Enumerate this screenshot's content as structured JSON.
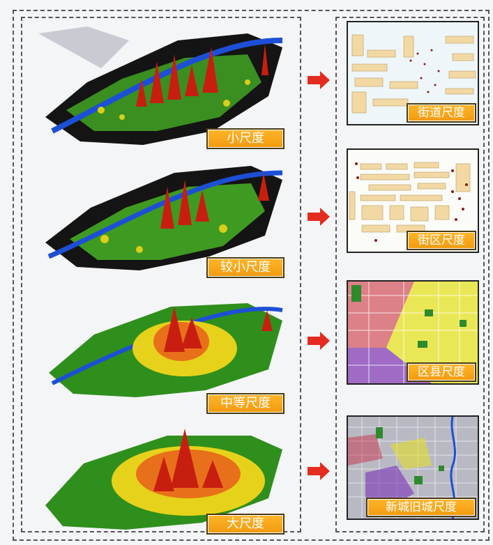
{
  "scales_3d": [
    {
      "label": "小尺度"
    },
    {
      "label": "较小尺度"
    },
    {
      "label": "中等尺度"
    },
    {
      "label": "大尺度"
    }
  ],
  "maps": [
    {
      "label": "街道尺度"
    },
    {
      "label": "街区尺度"
    },
    {
      "label": "区县尺度"
    },
    {
      "label": "新城旧城尺度"
    }
  ],
  "colors": {
    "label_fill": "#f7a21a",
    "arrow": "#e32b1f",
    "surface_low": "#2f8f1c",
    "surface_mid": "#e6d21a",
    "surface_high": "#c81e10",
    "river": "#1d4fd6",
    "building": "#f2d9a4"
  },
  "icons": {
    "arrow": "right-arrow-icon"
  }
}
